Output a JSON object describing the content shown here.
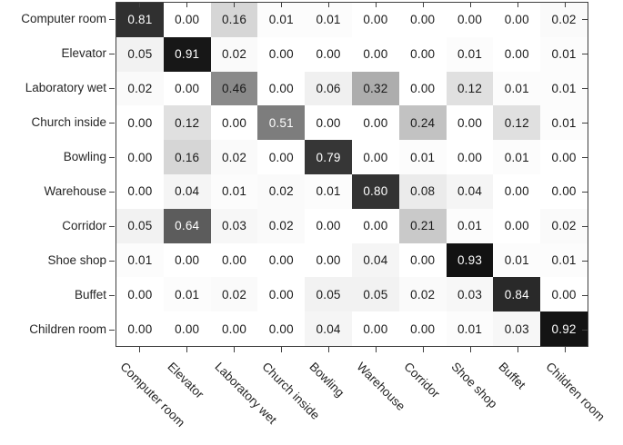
{
  "chart_data": {
    "type": "heatmap",
    "title": "",
    "xlabel": "",
    "ylabel": "",
    "row_labels": [
      "Computer room",
      "Elevator",
      "Laboratory wet",
      "Church inside",
      "Bowling",
      "Warehouse",
      "Corridor",
      "Shoe shop",
      "Buffet",
      "Children room"
    ],
    "col_labels": [
      "Computer room",
      "Elevator",
      "Laboratory wet",
      "Church inside",
      "Bowling",
      "Warehouse",
      "Corridor",
      "Shoe shop",
      "Buffet",
      "Children room"
    ],
    "matrix": [
      [
        0.81,
        0.0,
        0.16,
        0.01,
        0.01,
        0.0,
        0.0,
        0.0,
        0.0,
        0.02
      ],
      [
        0.05,
        0.91,
        0.02,
        0.0,
        0.0,
        0.0,
        0.0,
        0.01,
        0.0,
        0.01
      ],
      [
        0.02,
        0.0,
        0.46,
        0.0,
        0.06,
        0.32,
        0.0,
        0.12,
        0.01,
        0.01
      ],
      [
        0.0,
        0.12,
        0.0,
        0.51,
        0.0,
        0.0,
        0.24,
        0.0,
        0.12,
        0.01
      ],
      [
        0.0,
        0.16,
        0.02,
        0.0,
        0.79,
        0.0,
        0.01,
        0.0,
        0.01,
        0.0
      ],
      [
        0.0,
        0.04,
        0.01,
        0.02,
        0.01,
        0.8,
        0.08,
        0.04,
        0.0,
        0.0
      ],
      [
        0.05,
        0.64,
        0.03,
        0.02,
        0.0,
        0.0,
        0.21,
        0.01,
        0.0,
        0.02
      ],
      [
        0.01,
        0.0,
        0.0,
        0.0,
        0.0,
        0.04,
        0.0,
        0.93,
        0.01,
        0.01
      ],
      [
        0.0,
        0.01,
        0.02,
        0.0,
        0.05,
        0.05,
        0.02,
        0.03,
        0.84,
        0.0
      ],
      [
        0.0,
        0.0,
        0.0,
        0.0,
        0.04,
        0.0,
        0.0,
        0.01,
        0.03,
        0.92
      ]
    ],
    "value_decimals": 2,
    "value_range": [
      0,
      1
    ],
    "colormap": {
      "low": "#ffffff",
      "high": "#000000"
    },
    "cell_text_color_light_bg": "#1a1a1a",
    "cell_text_color_dark_bg": "#ffffff",
    "dark_text_threshold": 0.5,
    "axis_color": "#3f3f3f",
    "label_color": "#262626",
    "legend": "none",
    "grid": false,
    "col_label_rotation_deg": 45
  }
}
